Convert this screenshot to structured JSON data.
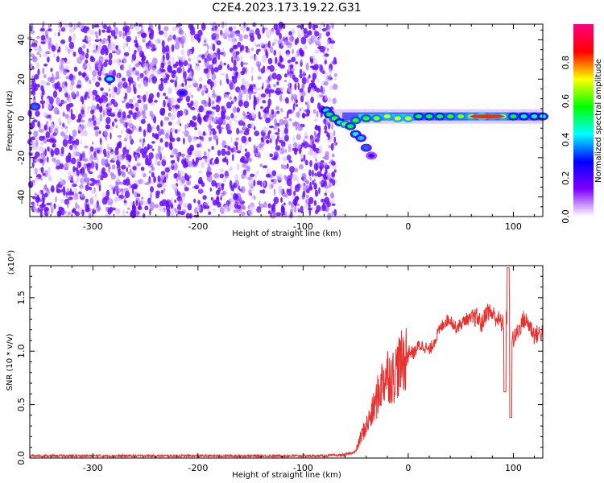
{
  "title": "C2E4.2023.173.19.22.G31",
  "chart_data": [
    {
      "type": "heatmap",
      "title": "",
      "xlabel": "Height of straight line (km)",
      "ylabel": "Frequency (Hz)",
      "xlim": [
        -360,
        128
      ],
      "ylim": [
        -50,
        48
      ],
      "xticks": [
        -300,
        -200,
        -100,
        0,
        100
      ],
      "yticks": [
        -40,
        -20,
        0,
        20,
        40
      ],
      "colorbar": {
        "label": "Normalized spectral amplitude",
        "range": [
          0,
          1
        ],
        "ticks": [
          "0.0",
          "0.2",
          "0.4",
          "0.6",
          "0.8"
        ],
        "tick_values": [
          0.0,
          0.2,
          0.4,
          0.6,
          0.8
        ],
        "colors": [
          "#ffffff",
          "#8000ff",
          "#0000ff",
          "#00ffff",
          "#00ff00",
          "#ffff00",
          "#ff0000",
          "#ff0080"
        ]
      },
      "noise_region_x": [
        -360,
        -75
      ],
      "signal_trace": [
        {
          "x": -78,
          "y": 4,
          "amp": 0.45
        },
        {
          "x": -75,
          "y": 2,
          "amp": 0.55
        },
        {
          "x": -70,
          "y": 0,
          "amp": 0.6
        },
        {
          "x": -65,
          "y": -2,
          "amp": 0.5
        },
        {
          "x": -60,
          "y": -3,
          "amp": 0.65
        },
        {
          "x": -55,
          "y": -4,
          "amp": 0.55
        },
        {
          "x": -50,
          "y": -8,
          "amp": 0.45
        },
        {
          "x": -45,
          "y": -10,
          "amp": 0.4
        },
        {
          "x": -40,
          "y": -15,
          "amp": 0.35
        },
        {
          "x": -35,
          "y": -19,
          "amp": 0.2
        },
        {
          "x": -50,
          "y": -1,
          "amp": 0.6
        },
        {
          "x": -40,
          "y": 0,
          "amp": 0.6
        },
        {
          "x": -30,
          "y": 0,
          "amp": 0.65
        },
        {
          "x": -20,
          "y": 1,
          "amp": 0.7
        },
        {
          "x": -10,
          "y": 0,
          "amp": 0.7
        },
        {
          "x": 0,
          "y": 0,
          "amp": 0.7
        },
        {
          "x": 10,
          "y": 1,
          "amp": 0.55
        },
        {
          "x": 20,
          "y": 1,
          "amp": 0.55
        },
        {
          "x": 30,
          "y": 1,
          "amp": 0.55
        },
        {
          "x": 40,
          "y": 1,
          "amp": 0.6
        },
        {
          "x": 50,
          "y": 1,
          "amp": 0.65
        },
        {
          "x": 60,
          "y": 1,
          "amp": 0.7
        },
        {
          "x": 70,
          "y": 1,
          "amp": 0.75
        },
        {
          "x": 80,
          "y": 1,
          "amp": 0.7
        },
        {
          "x": 90,
          "y": 1,
          "amp": 0.7
        },
        {
          "x": 100,
          "y": 1,
          "amp": 0.55
        },
        {
          "x": 110,
          "y": 1,
          "amp": 0.5
        },
        {
          "x": 120,
          "y": 1,
          "amp": 0.5
        },
        {
          "x": 128,
          "y": 1,
          "amp": 0.45
        },
        {
          "x": -284,
          "y": 20,
          "amp": 0.45
        },
        {
          "x": -355,
          "y": 6,
          "amp": 0.35
        },
        {
          "x": -215,
          "y": 13,
          "amp": 0.3
        }
      ]
    },
    {
      "type": "line",
      "title": "",
      "xlabel": "Height of straight line (km)",
      "ylabel": "SNR (10 * v/v)",
      "multiplier_label": "(x10⁴)",
      "xlim": [
        -360,
        128
      ],
      "ylim": [
        0,
        1.8
      ],
      "xticks": [
        -300,
        -200,
        -100,
        0,
        100
      ],
      "yticks": [
        "0.0",
        "0.5",
        "1.0",
        "1.5"
      ],
      "ytick_values": [
        0.0,
        0.5,
        1.0,
        1.5
      ],
      "series": [
        {
          "color": "#e8312f",
          "x": [
            -360,
            -320,
            -280,
            -240,
            -200,
            -160,
            -120,
            -80,
            -60,
            -50,
            -45,
            -40,
            -35,
            -30,
            -25,
            -20,
            -15,
            -10,
            -5,
            0,
            5,
            10,
            15,
            20,
            25,
            30,
            35,
            40,
            45,
            50,
            55,
            60,
            65,
            70,
            75,
            80,
            85,
            90,
            95,
            100,
            105,
            110,
            115,
            120,
            128
          ],
          "y": [
            0.02,
            0.02,
            0.02,
            0.02,
            0.02,
            0.02,
            0.02,
            0.02,
            0.03,
            0.06,
            0.2,
            0.3,
            0.4,
            0.55,
            0.7,
            0.8,
            0.75,
            0.85,
            0.9,
            1.0,
            0.98,
            1.05,
            1.05,
            1.0,
            1.1,
            1.2,
            1.28,
            1.3,
            1.22,
            1.25,
            1.3,
            1.3,
            1.32,
            1.25,
            1.38,
            1.35,
            1.3,
            1.25,
            1.35,
            1.1,
            1.2,
            1.3,
            1.25,
            1.15,
            1.18
          ]
        }
      ]
    }
  ]
}
